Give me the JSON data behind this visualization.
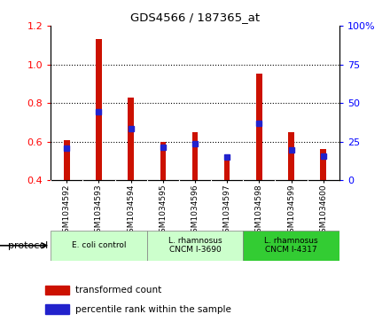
{
  "title": "GDS4566 / 187365_at",
  "samples": [
    "GSM1034592",
    "GSM1034593",
    "GSM1034594",
    "GSM1034595",
    "GSM1034596",
    "GSM1034597",
    "GSM1034598",
    "GSM1034599",
    "GSM1034600"
  ],
  "transformed_counts": [
    0.61,
    1.13,
    0.83,
    0.6,
    0.65,
    0.51,
    0.95,
    0.65,
    0.56
  ],
  "percentile_ranks": [
    0.565,
    0.755,
    0.668,
    0.572,
    0.59,
    0.522,
    0.695,
    0.558,
    0.525
  ],
  "ylim": [
    0.4,
    1.2
  ],
  "yticks_left": [
    0.4,
    0.6,
    0.8,
    1.0,
    1.2
  ],
  "yticks_right_labels": [
    "0",
    "25",
    "50",
    "75",
    "100%"
  ],
  "bar_color": "#CC1100",
  "percentile_color": "#2222CC",
  "xtick_bg_color": "#C8C8C8",
  "proto_colors": [
    "#CCFFCC",
    "#CCFFCC",
    "#33CC33"
  ],
  "proto_labels": [
    "E. coli control",
    "L. rhamnosus\nCNCM I-3690",
    "L. rhamnosus\nCNCM I-4317"
  ],
  "proto_ranges": [
    [
      0,
      3
    ],
    [
      3,
      6
    ],
    [
      6,
      9
    ]
  ],
  "legend_items": [
    {
      "label": "transformed count",
      "color": "#CC1100"
    },
    {
      "label": "percentile rank within the sample",
      "color": "#2222CC"
    }
  ],
  "bar_width": 0.18
}
